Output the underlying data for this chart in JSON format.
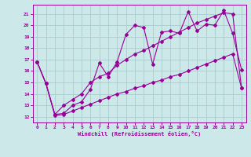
{
  "xlabel": "Windchill (Refroidissement éolien,°C)",
  "bg_color": "#cce8e8",
  "grid_color": "#aacccc",
  "line_color": "#990099",
  "xlim": [
    -0.5,
    23.5
  ],
  "ylim": [
    11.5,
    21.8
  ],
  "yticks": [
    12,
    13,
    14,
    15,
    16,
    17,
    18,
    19,
    20,
    21
  ],
  "xticks": [
    0,
    1,
    2,
    3,
    4,
    5,
    6,
    7,
    8,
    9,
    10,
    11,
    12,
    13,
    14,
    15,
    16,
    17,
    18,
    19,
    20,
    21,
    22,
    23
  ],
  "line1_x": [
    0,
    1,
    2,
    3,
    4,
    5,
    6,
    7,
    8,
    9,
    10,
    11,
    12,
    13,
    14,
    15,
    16,
    17,
    18,
    19,
    20,
    21,
    22,
    23
  ],
  "line1_y": [
    16.8,
    14.9,
    12.2,
    12.3,
    13.0,
    13.3,
    14.4,
    16.7,
    15.5,
    16.8,
    19.2,
    20.0,
    19.8,
    16.6,
    19.4,
    19.5,
    19.3,
    21.2,
    19.5,
    20.1,
    20.0,
    21.3,
    19.3,
    16.1
  ],
  "line2_x": [
    0,
    1,
    2,
    3,
    4,
    5,
    6,
    7,
    8,
    9,
    10,
    11,
    12,
    13,
    14,
    15,
    16,
    17,
    18,
    19,
    20,
    21,
    22,
    23
  ],
  "line2_y": [
    16.8,
    14.9,
    12.2,
    13.0,
    13.5,
    14.0,
    15.0,
    15.5,
    15.8,
    16.5,
    17.0,
    17.5,
    17.8,
    18.2,
    18.6,
    19.0,
    19.4,
    19.8,
    20.2,
    20.5,
    20.8,
    21.1,
    21.0,
    14.5
  ],
  "line3_x": [
    0,
    1,
    2,
    3,
    4,
    5,
    6,
    7,
    8,
    9,
    10,
    11,
    12,
    13,
    14,
    15,
    16,
    17,
    18,
    19,
    20,
    21,
    22,
    23
  ],
  "line3_y": [
    16.8,
    14.9,
    12.1,
    12.2,
    12.5,
    12.8,
    13.1,
    13.4,
    13.7,
    14.0,
    14.2,
    14.5,
    14.7,
    15.0,
    15.2,
    15.5,
    15.7,
    16.0,
    16.3,
    16.6,
    16.9,
    17.2,
    17.5,
    14.5
  ]
}
